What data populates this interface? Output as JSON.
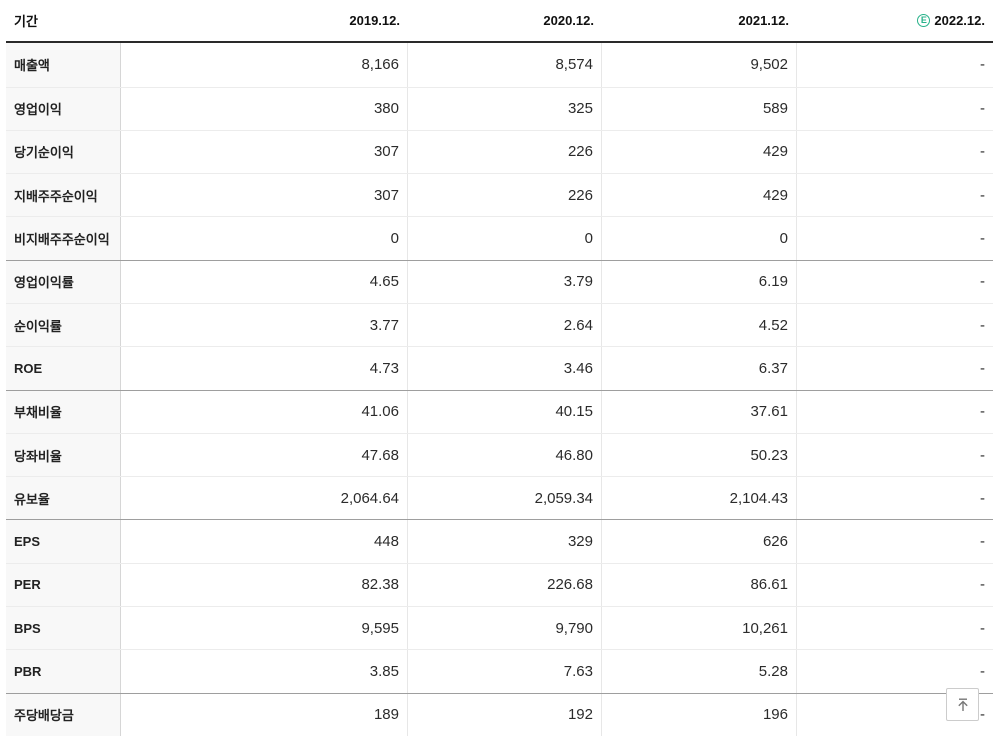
{
  "table": {
    "header": {
      "period_label": "기간",
      "col1": "2019.12.",
      "col2": "2020.12.",
      "col3": "2021.12.",
      "col4": "2022.12.",
      "estimate_badge_letter": "E",
      "estimate_badge_color": "#28b28a",
      "estimate_badge_meaning": "estimate"
    },
    "rows": [
      {
        "key": "revenue",
        "label": "매출액",
        "values": [
          "8,166",
          "8,574",
          "9,502",
          "-"
        ],
        "group_start": false
      },
      {
        "key": "operating-profit",
        "label": "영업이익",
        "values": [
          "380",
          "325",
          "589",
          "-"
        ],
        "group_start": false
      },
      {
        "key": "net-income",
        "label": "당기순이익",
        "values": [
          "307",
          "226",
          "429",
          "-"
        ],
        "group_start": false
      },
      {
        "key": "controlling-net-income",
        "label": "지배주주순이익",
        "values": [
          "307",
          "226",
          "429",
          "-"
        ],
        "group_start": false
      },
      {
        "key": "non-controlling-net-income",
        "label": "비지배주주순이익",
        "values": [
          "0",
          "0",
          "0",
          "-"
        ],
        "group_start": false
      },
      {
        "key": "operating-margin",
        "label": "영업이익률",
        "values": [
          "4.65",
          "3.79",
          "6.19",
          "-"
        ],
        "group_start": true
      },
      {
        "key": "net-margin",
        "label": "순이익률",
        "values": [
          "3.77",
          "2.64",
          "4.52",
          "-"
        ],
        "group_start": false
      },
      {
        "key": "roe",
        "label": "ROE",
        "values": [
          "4.73",
          "3.46",
          "6.37",
          "-"
        ],
        "group_start": false
      },
      {
        "key": "debt-ratio",
        "label": "부채비율",
        "values": [
          "41.06",
          "40.15",
          "37.61",
          "-"
        ],
        "group_start": true
      },
      {
        "key": "quick-ratio",
        "label": "당좌비율",
        "values": [
          "47.68",
          "46.80",
          "50.23",
          "-"
        ],
        "group_start": false
      },
      {
        "key": "reserve-ratio",
        "label": "유보율",
        "values": [
          "2,064.64",
          "2,059.34",
          "2,104.43",
          "-"
        ],
        "group_start": false
      },
      {
        "key": "eps",
        "label": "EPS",
        "values": [
          "448",
          "329",
          "626",
          "-"
        ],
        "group_start": true
      },
      {
        "key": "per",
        "label": "PER",
        "values": [
          "82.38",
          "226.68",
          "86.61",
          "-"
        ],
        "group_start": false
      },
      {
        "key": "bps",
        "label": "BPS",
        "values": [
          "9,595",
          "9,790",
          "10,261",
          "-"
        ],
        "group_start": false
      },
      {
        "key": "pbr",
        "label": "PBR",
        "values": [
          "3.85",
          "7.63",
          "5.28",
          "-"
        ],
        "group_start": false
      },
      {
        "key": "dividend-per-share",
        "label": "주당배당금",
        "values": [
          "189",
          "192",
          "196",
          "-"
        ],
        "group_start": true
      }
    ]
  },
  "scroll_top_button": {
    "icon": "arrow-up-to-top-icon"
  },
  "colors": {
    "header_border": "#2a2a2a",
    "row_separator": "#ececec",
    "group_separator": "#9e9e9e",
    "label_column_bg": "#f8f8f8",
    "column_separator": "#e7e7e7",
    "estimate_green": "#28b28a"
  }
}
